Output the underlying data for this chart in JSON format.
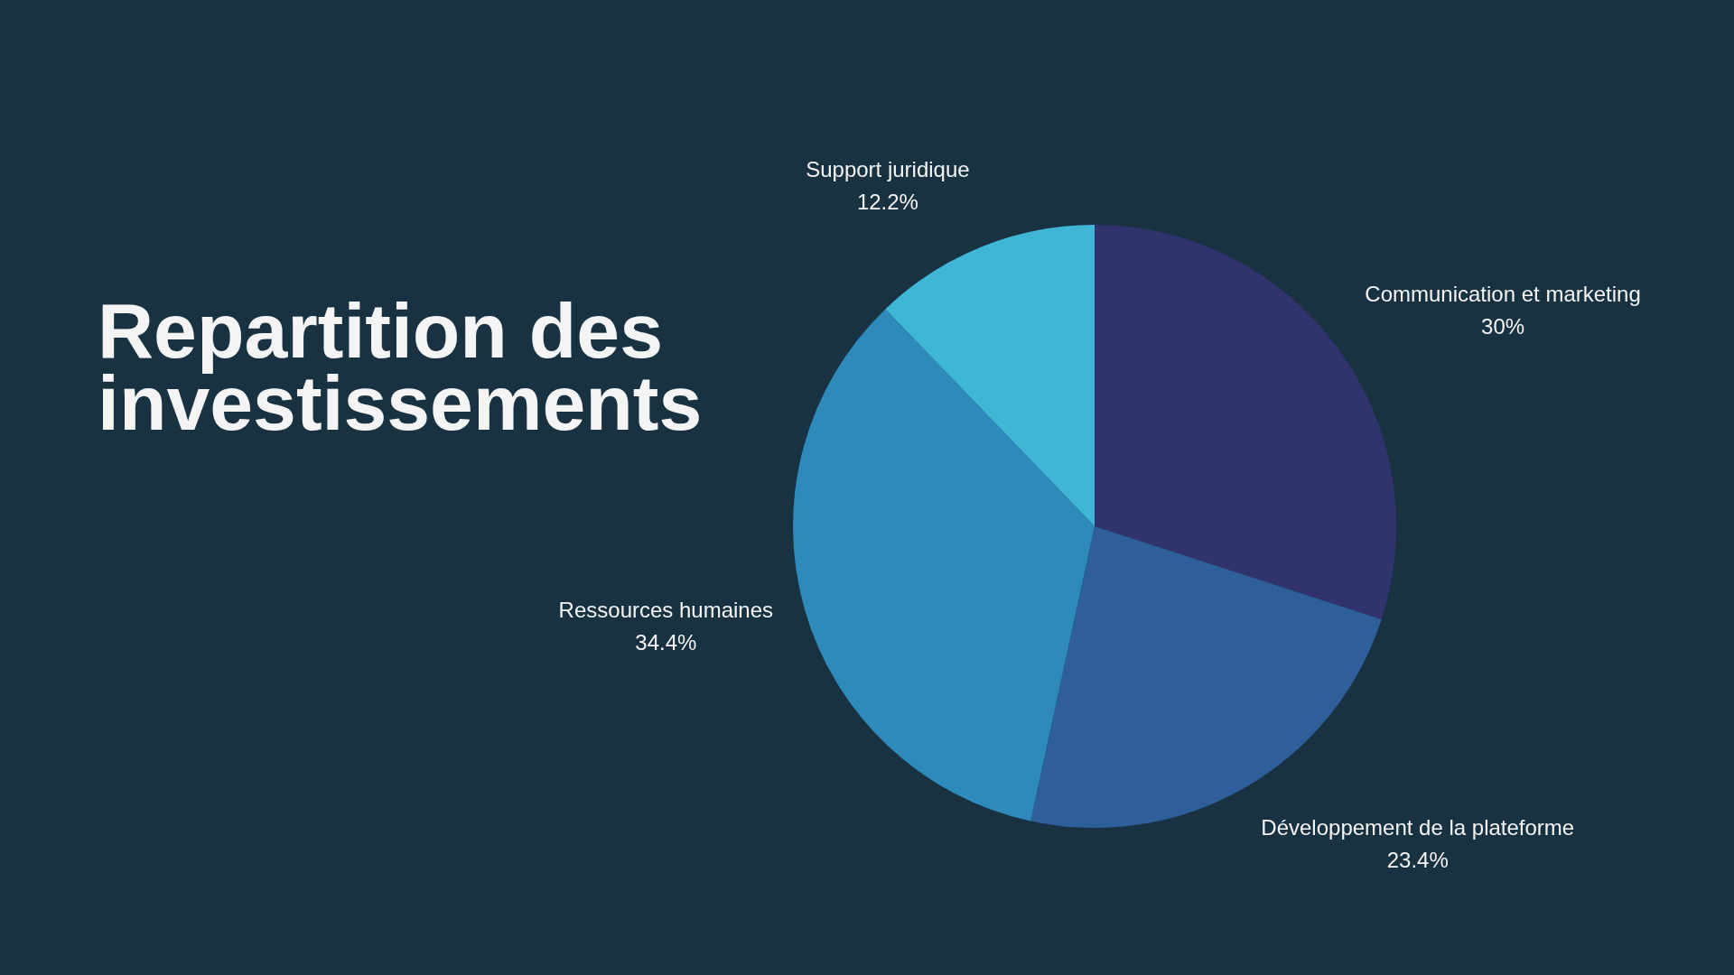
{
  "chart_data": {
    "type": "pie",
    "title": "Repartition des investissements",
    "categories": [
      "Communication et marketing",
      "Développement de la plateforme",
      "Ressources humaines",
      "Support juridique"
    ],
    "values": [
      30,
      23.4,
      34.4,
      12.2
    ],
    "colors": [
      "#31346c",
      "#2e5f9a",
      "#2d8aba",
      "#40b6d6"
    ],
    "value_labels": [
      "30%",
      "23.4%",
      "34.4%",
      "12.2%"
    ]
  }
}
